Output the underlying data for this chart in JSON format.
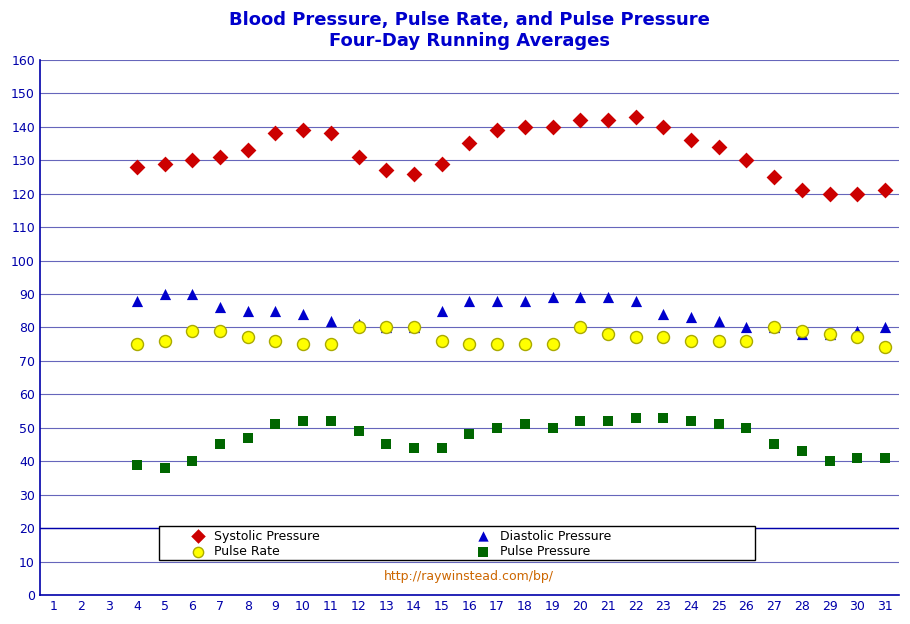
{
  "title_line1": "Blood Pressure, Pulse Rate, and Pulse Pressure",
  "title_line2": "Four-Day Running Averages",
  "x_ticks": [
    1,
    2,
    3,
    4,
    5,
    6,
    7,
    8,
    9,
    10,
    11,
    12,
    13,
    14,
    15,
    16,
    17,
    18,
    19,
    20,
    21,
    22,
    23,
    24,
    25,
    26,
    27,
    28,
    29,
    30,
    31
  ],
  "systolic_x": [
    4,
    5,
    6,
    7,
    8,
    9,
    10,
    11,
    12,
    13,
    14,
    15,
    16,
    17,
    18,
    19,
    20,
    21,
    22,
    23,
    24,
    25,
    26,
    27,
    28,
    29,
    30,
    31
  ],
  "systolic_y": [
    128,
    129,
    130,
    131,
    133,
    138,
    139,
    138,
    131,
    127,
    126,
    129,
    135,
    139,
    140,
    140,
    142,
    142,
    143,
    140,
    136,
    134,
    130,
    125,
    121,
    120,
    120,
    121
  ],
  "diastolic_x": [
    4,
    5,
    6,
    7,
    8,
    9,
    10,
    11,
    12,
    13,
    14,
    15,
    16,
    17,
    18,
    19,
    20,
    21,
    22,
    23,
    24,
    25,
    26,
    27,
    28,
    29,
    30,
    31
  ],
  "diastolic_y": [
    88,
    90,
    90,
    86,
    85,
    85,
    84,
    82,
    81,
    80,
    80,
    85,
    88,
    88,
    88,
    89,
    89,
    89,
    88,
    84,
    83,
    82,
    80,
    80,
    78,
    78,
    79,
    80
  ],
  "pulse_rate_x": [
    4,
    5,
    6,
    7,
    8,
    9,
    10,
    11,
    12,
    13,
    14,
    15,
    16,
    17,
    18,
    19,
    20,
    21,
    22,
    23,
    24,
    25,
    26,
    27,
    28,
    29,
    30,
    31
  ],
  "pulse_rate_y": [
    75,
    76,
    79,
    79,
    77,
    76,
    75,
    75,
    80,
    80,
    80,
    76,
    75,
    75,
    75,
    75,
    80,
    78,
    77,
    77,
    76,
    76,
    76,
    80,
    79,
    78,
    77,
    74
  ],
  "pulse_pres_x": [
    4,
    5,
    6,
    7,
    8,
    9,
    10,
    11,
    12,
    13,
    14,
    15,
    16,
    17,
    18,
    19,
    20,
    21,
    22,
    23,
    24,
    25,
    26,
    27,
    28,
    29,
    30,
    31
  ],
  "pulse_pres_y": [
    39,
    38,
    40,
    45,
    47,
    51,
    52,
    52,
    49,
    45,
    44,
    44,
    48,
    50,
    51,
    50,
    52,
    52,
    53,
    53,
    52,
    51,
    50,
    45,
    43,
    40,
    41,
    41
  ],
  "systolic_color": "#CC0000",
  "diastolic_color": "#0000CC",
  "pulse_rate_color": "#FFFF00",
  "pulse_pressure_color": "#006600",
  "background_color": "#FFFFFF",
  "plot_bg_color": "#FFFFFF",
  "grid_color": "#6666BB",
  "ylim": [
    0,
    160
  ],
  "yticks": [
    0,
    10,
    20,
    30,
    40,
    50,
    60,
    70,
    80,
    90,
    100,
    110,
    120,
    130,
    140,
    150,
    160
  ],
  "title_color": "#0000CC",
  "watermark": "http://raywinstead.com/bp/",
  "watermark_color": "#CC6600",
  "border_color": "#0000AA"
}
